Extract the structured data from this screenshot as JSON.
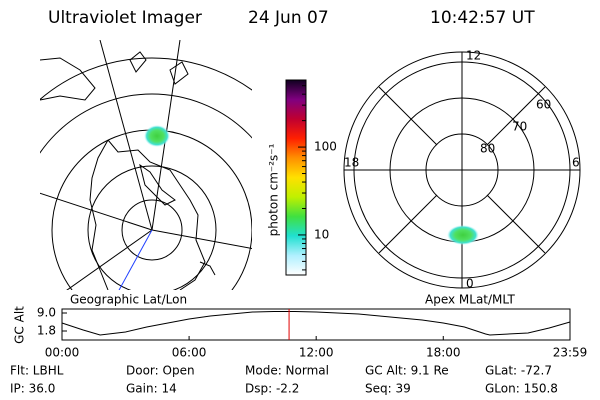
{
  "header": {
    "instrument": "Ultraviolet Imager",
    "date": "24 Jun 07",
    "time": "10:42:57 UT"
  },
  "geographic_panel": {
    "label": "Geographic Lat/Lon"
  },
  "colorbar": {
    "label": "photon cm⁻²s⁻¹",
    "scale": "log",
    "lim": [
      3.5,
      580
    ],
    "ticks": [
      10,
      100
    ],
    "colors": [
      "#ffffff",
      "#b0f0ff",
      "#20e0d0",
      "#40e040",
      "#c0f000",
      "#ffe000",
      "#ff9000",
      "#ff2000",
      "#c00030",
      "#800080",
      "#100020"
    ]
  },
  "polar_panel": {
    "label": "Apex MLat/MLT",
    "mlt_labels": [
      "12",
      "6",
      "0",
      "18"
    ],
    "mlat_labels": [
      "60",
      "70",
      "80"
    ]
  },
  "altitude_plot": {
    "ylabel": "GC Alt",
    "xlim": [
      0,
      23.983
    ],
    "ylim": [
      -1.8,
      10.6
    ],
    "yticks": [
      {
        "value": 9,
        "label": "9.0"
      },
      1.8
    ],
    "xticks": [
      {
        "value": 0,
        "label": "00:00"
      },
      {
        "value": 6,
        "label": "06:00"
      },
      {
        "value": 12,
        "label": "12:00"
      },
      {
        "value": 18,
        "label": "18:00"
      },
      {
        "value": 23.983,
        "label": "23:59"
      }
    ],
    "x": [
      0,
      1,
      1.8,
      3,
      4,
      5,
      6,
      7,
      8,
      9,
      10,
      11,
      12,
      13,
      14,
      15,
      16,
      17,
      18,
      19,
      20,
      20.2,
      22,
      23,
      23.983
    ],
    "values": [
      5.0,
      2.2,
      0.2,
      1.4,
      3.4,
      5.0,
      6.6,
      7.8,
      8.6,
      9.4,
      9.6,
      9.6,
      9.4,
      9.0,
      8.6,
      7.8,
      7.0,
      6.2,
      5.0,
      3.4,
      0.6,
      0.2,
      1.0,
      3.0,
      5.4
    ],
    "current_hour": 10.72,
    "marker_color": "#e00000"
  },
  "info": {
    "rows": [
      [
        "Flt: LBHL",
        "Door: Open",
        "Mode: Normal",
        "GC Alt: 9.1 Re",
        "GLat: -72.7"
      ],
      [
        "IP: 36.0",
        "Gain: 14",
        "Dsp:    -2.2",
        "Seq: 39",
        "GLon: 150.8"
      ]
    ]
  }
}
